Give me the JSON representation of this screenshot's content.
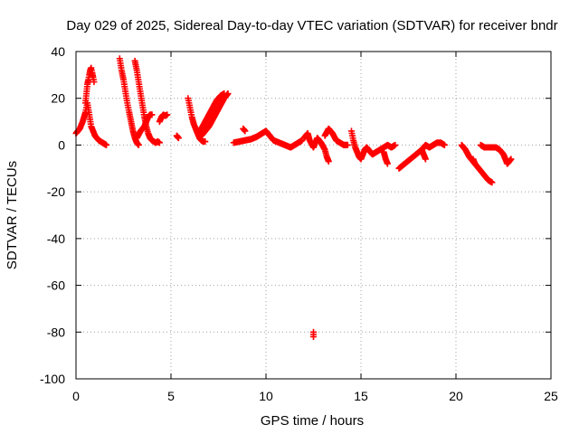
{
  "chart_data": {
    "type": "scatter",
    "title": "Day 029 of 2025, Sidereal Day-to-day VTEC variation (SDTVAR) for receiver bndr",
    "xlabel": "GPS time / hours",
    "ylabel": "SDTVAR / TECUs",
    "xlim": [
      0,
      25
    ],
    "ylim": [
      -100,
      40
    ],
    "xticks": [
      0,
      5,
      10,
      15,
      20,
      25
    ],
    "yticks": [
      -100,
      -80,
      -60,
      -40,
      -20,
      0,
      20,
      40
    ],
    "grid": true,
    "marker": "plus",
    "color": "#ff0000",
    "series": [
      {
        "name": "SDTVAR",
        "segments": [
          [
            [
              0.0,
              5
            ],
            [
              0.2,
              7
            ],
            [
              0.35,
              10
            ],
            [
              0.5,
              14
            ],
            [
              0.6,
              18
            ],
            [
              0.7,
              13
            ],
            [
              0.8,
              8
            ],
            [
              0.9,
              6
            ],
            [
              1.0,
              4
            ],
            [
              1.1,
              3
            ],
            [
              1.2,
              2
            ],
            [
              1.3,
              1.5
            ],
            [
              1.4,
              1
            ],
            [
              1.5,
              0.5
            ],
            [
              1.6,
              0
            ]
          ],
          [
            [
              0.5,
              18
            ],
            [
              0.55,
              22
            ],
            [
              0.6,
              26
            ],
            [
              0.65,
              28
            ],
            [
              0.7,
              30
            ],
            [
              0.75,
              32
            ],
            [
              0.8,
              33
            ],
            [
              0.85,
              31
            ],
            [
              0.9,
              29
            ],
            [
              0.95,
              27
            ]
          ],
          [
            [
              2.3,
              37
            ],
            [
              2.4,
              32
            ],
            [
              2.5,
              28
            ],
            [
              2.6,
              23
            ],
            [
              2.7,
              18
            ],
            [
              2.8,
              14
            ],
            [
              2.9,
              10
            ],
            [
              3.0,
              6
            ],
            [
              3.1,
              3
            ],
            [
              3.2,
              1
            ],
            [
              3.3,
              0
            ]
          ],
          [
            [
              3.1,
              36
            ],
            [
              3.2,
              32
            ],
            [
              3.3,
              27
            ],
            [
              3.4,
              22
            ],
            [
              3.5,
              17
            ],
            [
              3.6,
              12
            ],
            [
              3.7,
              8
            ],
            [
              3.8,
              5
            ],
            [
              3.9,
              3
            ],
            [
              4.0,
              2
            ],
            [
              4.1,
              1.5
            ],
            [
              4.2,
              1
            ],
            [
              4.3,
              1.5
            ],
            [
              4.4,
              1
            ]
          ],
          [
            [
              3.2,
              3
            ],
            [
              3.4,
              6
            ],
            [
              3.6,
              8
            ],
            [
              3.7,
              10
            ],
            [
              3.8,
              12
            ],
            [
              3.9,
              13
            ],
            [
              4.0,
              13
            ]
          ],
          [
            [
              4.4,
              10
            ],
            [
              4.5,
              12
            ],
            [
              4.6,
              13
            ],
            [
              4.7,
              12.5
            ],
            [
              4.8,
              13
            ]
          ],
          [
            [
              5.3,
              4
            ],
            [
              5.4,
              3
            ]
          ],
          [
            [
              5.9,
              20
            ],
            [
              6.0,
              16
            ],
            [
              6.1,
              12
            ],
            [
              6.2,
              9
            ],
            [
              6.3,
              7
            ],
            [
              6.4,
              5
            ],
            [
              6.5,
              3
            ],
            [
              6.6,
              2
            ],
            [
              6.7,
              1.5
            ],
            [
              6.8,
              1.5
            ]
          ],
          [
            [
              6.4,
              5
            ],
            [
              6.6,
              7
            ],
            [
              6.8,
              10
            ],
            [
              7.0,
              13
            ],
            [
              7.2,
              16
            ],
            [
              7.4,
              19
            ],
            [
              7.6,
              21
            ],
            [
              7.8,
              22
            ]
          ],
          [
            [
              6.6,
              4
            ],
            [
              6.8,
              6
            ],
            [
              7.0,
              8
            ],
            [
              7.2,
              11
            ],
            [
              7.4,
              14
            ],
            [
              7.6,
              17
            ],
            [
              7.8,
              20
            ],
            [
              8.0,
              22
            ]
          ],
          [
            [
              8.3,
              1
            ],
            [
              8.6,
              1.5
            ],
            [
              8.9,
              2
            ],
            [
              9.2,
              2.5
            ],
            [
              9.5,
              3.5
            ],
            [
              9.8,
              5
            ],
            [
              10.0,
              6
            ],
            [
              10.2,
              4
            ],
            [
              10.4,
              2
            ],
            [
              10.7,
              1
            ],
            [
              11.0,
              0
            ],
            [
              11.3,
              -1
            ],
            [
              11.5,
              0
            ],
            [
              11.7,
              1
            ],
            [
              11.9,
              2
            ]
          ],
          [
            [
              8.8,
              7
            ],
            [
              8.9,
              6
            ]
          ],
          [
            [
              12.0,
              3
            ],
            [
              12.2,
              5
            ],
            [
              12.3,
              2
            ],
            [
              12.5,
              -1
            ],
            [
              12.7,
              3
            ],
            [
              12.9,
              1
            ],
            [
              13.1,
              -2
            ],
            [
              13.2,
              -5
            ],
            [
              13.3,
              -7
            ]
          ],
          [
            [
              13.1,
              4
            ],
            [
              13.3,
              7
            ],
            [
              13.5,
              5
            ],
            [
              13.7,
              2
            ],
            [
              13.9,
              1
            ],
            [
              14.1,
              0
            ],
            [
              14.3,
              0
            ]
          ],
          [
            [
              12.5,
              -80
            ],
            [
              12.5,
              -81
            ],
            [
              12.5,
              -82
            ]
          ],
          [
            [
              14.5,
              6
            ],
            [
              14.6,
              2
            ],
            [
              14.7,
              -1
            ],
            [
              14.8,
              -3
            ],
            [
              14.9,
              -5
            ],
            [
              15.0,
              -6
            ],
            [
              15.1,
              -4
            ],
            [
              15.2,
              -2
            ],
            [
              15.3,
              -1
            ],
            [
              15.4,
              -2
            ],
            [
              15.6,
              -4
            ],
            [
              15.8,
              -3
            ],
            [
              16.0,
              -2
            ],
            [
              16.2,
              -1
            ],
            [
              16.4,
              0
            ],
            [
              16.6,
              -1
            ],
            [
              16.8,
              0
            ]
          ],
          [
            [
              16.2,
              -3
            ],
            [
              16.3,
              -6
            ],
            [
              16.4,
              -8
            ]
          ],
          [
            [
              17.0,
              -10
            ],
            [
              17.3,
              -8
            ],
            [
              17.6,
              -6
            ],
            [
              17.9,
              -4
            ],
            [
              18.2,
              -2
            ],
            [
              18.4,
              0
            ],
            [
              18.6,
              -1
            ],
            [
              18.8,
              0
            ],
            [
              19.0,
              1
            ],
            [
              19.2,
              1
            ],
            [
              19.4,
              0
            ]
          ],
          [
            [
              18.2,
              -2
            ],
            [
              18.4,
              -6
            ]
          ],
          [
            [
              20.3,
              0
            ],
            [
              20.5,
              -2
            ],
            [
              20.7,
              -5
            ],
            [
              20.9,
              -7
            ],
            [
              21.1,
              -9
            ],
            [
              21.3,
              -11
            ],
            [
              21.5,
              -13
            ],
            [
              21.7,
              -15
            ],
            [
              21.9,
              -16
            ]
          ],
          [
            [
              20.9,
              -6
            ],
            [
              21.0,
              -8
            ]
          ],
          [
            [
              21.3,
              0
            ],
            [
              21.5,
              -1
            ],
            [
              21.7,
              -1
            ],
            [
              21.9,
              -1
            ],
            [
              22.1,
              -1
            ],
            [
              22.3,
              -2
            ],
            [
              22.5,
              -4
            ],
            [
              22.6,
              -6
            ],
            [
              22.7,
              -8
            ],
            [
              22.8,
              -7
            ],
            [
              22.9,
              -6
            ]
          ]
        ]
      }
    ]
  }
}
